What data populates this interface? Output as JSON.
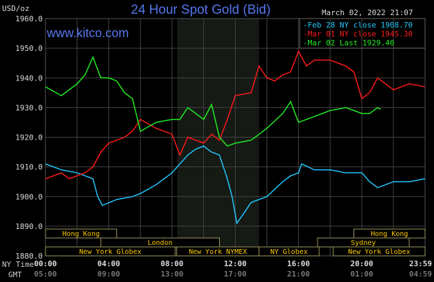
{
  "chart_data": {
    "type": "line",
    "title": "24 Hour Spot Gold (Bid)",
    "ylabel": "USD/oz",
    "timestamp": "March 02, 2022 21:07",
    "watermark": "www.kitco.com",
    "ylim": [
      1880,
      1960
    ],
    "yticks": [
      "1960.0",
      "1950.0",
      "1940.0",
      "1930.0",
      "1920.0",
      "1910.0",
      "1900.0",
      "1890.0",
      "1880.0"
    ],
    "xlim_hours": [
      0,
      24
    ],
    "xaxis_ny_label": "NY Time",
    "xaxis_gmt_label": "GMT",
    "xticks_ny": [
      "00:00",
      "04:00",
      "08:00",
      "12:00",
      "16:00",
      "20:00",
      "23:59"
    ],
    "xticks_gmt": [
      "05:00",
      "09:00",
      "13:00",
      "17:00",
      "21:00",
      "01:00",
      "04:59"
    ],
    "grid": true,
    "legend_position": "top-right",
    "series": [
      {
        "name": "Feb 28 NY close 1908.70",
        "color": "#22c8ff",
        "x": [
          0,
          1,
          2,
          3,
          3.3,
          3.6,
          4.5,
          5.5,
          6,
          7,
          8,
          8.5,
          9,
          9.5,
          10,
          10.5,
          11,
          11.5,
          11.8,
          12.1,
          12.5,
          13,
          14,
          15,
          15.5,
          16,
          16.2,
          17,
          18,
          19,
          20,
          20.5,
          21,
          22,
          23,
          24
        ],
        "y": [
          1911,
          1909,
          1908,
          1906,
          1900,
          1897,
          1899,
          1900,
          1901,
          1904,
          1908,
          1911,
          1914,
          1916,
          1917,
          1915,
          1914,
          1906,
          1900,
          1891,
          1894,
          1898,
          1900,
          1905,
          1907,
          1908,
          1911,
          1909,
          1909,
          1908,
          1908,
          1905,
          1903,
          1905,
          1905,
          1906
        ]
      },
      {
        "name": "Mar 01 NY close 1945.30",
        "color": "#ff1a1a",
        "x": [
          0,
          1,
          1.5,
          2,
          2.5,
          3,
          3.5,
          4,
          5,
          5.5,
          6,
          7,
          8,
          8.5,
          9,
          10,
          10.5,
          11,
          11.5,
          12,
          13,
          13.5,
          14,
          14.5,
          15,
          15.5,
          16,
          16.5,
          17,
          18,
          18.5,
          19,
          19.5,
          20,
          20.5,
          21,
          22,
          23,
          24
        ],
        "y": [
          1906,
          1908,
          1906,
          1907,
          1908,
          1910,
          1915,
          1918,
          1920,
          1922,
          1926,
          1923,
          1921,
          1914,
          1920,
          1918,
          1921,
          1919,
          1926,
          1934,
          1935,
          1944,
          1940,
          1939,
          1941,
          1942,
          1949,
          1944,
          1946,
          1946,
          1945,
          1944,
          1942,
          1933,
          1935,
          1940,
          1936,
          1938,
          1937
        ]
      },
      {
        "name": "Mar 02 Last 1929.40",
        "color": "#22ee22",
        "x": [
          0,
          1,
          1.5,
          2,
          2.5,
          3,
          3.5,
          4,
          4.5,
          5,
          5.5,
          6,
          7,
          8,
          8.5,
          9,
          9.5,
          10,
          10.5,
          11,
          11.5,
          12,
          13,
          14,
          15,
          15.5,
          16,
          17,
          17.5,
          18,
          19,
          20,
          20.5,
          21,
          21.2
        ],
        "y": [
          1937,
          1934,
          1936,
          1938,
          1941,
          1947,
          1940,
          1940,
          1939,
          1935,
          1933,
          1922,
          1925,
          1926,
          1926,
          1930,
          1928,
          1926,
          1931,
          1920,
          1917,
          1918,
          1919,
          1923,
          1928,
          1932,
          1925,
          1927,
          1928,
          1929,
          1930,
          1928,
          1928,
          1930,
          1929.4
        ]
      }
    ],
    "sessions": [
      {
        "label": "Hong Kong",
        "start": 0,
        "end": 4.5,
        "row": 0
      },
      {
        "label": "Hong Kong",
        "start": 19.5,
        "end": 24,
        "row": 0
      },
      {
        "label": "London",
        "start": 3.5,
        "end": 11,
        "row": 1
      },
      {
        "label": "Sydney",
        "start": 17.2,
        "end": 23,
        "row": 1
      },
      {
        "label": "New York Globex",
        "start": 0,
        "end": 8.2,
        "row": 2
      },
      {
        "label": "New York NYMEX",
        "start": 8.3,
        "end": 13.5,
        "row": 2
      },
      {
        "label": "NY Globex",
        "start": 13.5,
        "end": 17.3,
        "row": 2
      },
      {
        "label": "New York Globex",
        "start": 18.2,
        "end": 24,
        "row": 2
      }
    ],
    "nymex_shade": [
      8.33,
      13.5
    ]
  }
}
